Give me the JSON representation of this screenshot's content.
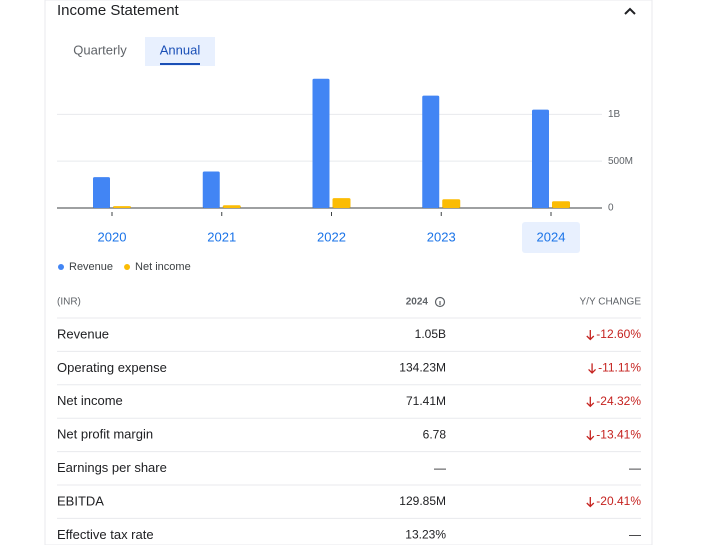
{
  "header": {
    "title": "Income Statement"
  },
  "tabs": [
    "Quarterly",
    "Annual"
  ],
  "chart_data": {
    "type": "bar",
    "categories": [
      "2020",
      "2021",
      "2022",
      "2023",
      "2024"
    ],
    "series": [
      {
        "name": "Revenue",
        "color": "#4285f4",
        "values": [
          330000000,
          390000000,
          1380000000,
          1200000000,
          1050000000
        ]
      },
      {
        "name": "Net income",
        "color": "#fbbc04",
        "values": [
          20000000,
          30000000,
          106000000,
          94000000,
          71410000
        ]
      }
    ],
    "ylim": [
      0,
      1420000000
    ],
    "yticks": [
      0,
      {
        "value": 500000000,
        "label": "500M"
      },
      {
        "value": 1000000000,
        "label": "1B"
      }
    ],
    "grid": true
  },
  "table": {
    "header": [
      "(INR)",
      "2024",
      "Y/Y CHANGE"
    ],
    "rows": [
      [
        "Revenue",
        "1.05B",
        "-12.60%"
      ],
      [
        "Operating expense",
        "134.23M",
        "-11.11%"
      ],
      [
        "Net income",
        "71.41M",
        "-24.32%"
      ],
      [
        "Net profit margin",
        "6.78",
        "-13.41%"
      ],
      [
        "Earnings per share",
        "—",
        "—"
      ],
      [
        "EBITDA",
        "129.85M",
        "-20.41%"
      ],
      [
        "Effective tax rate",
        "13.23%",
        "—"
      ]
    ]
  }
}
